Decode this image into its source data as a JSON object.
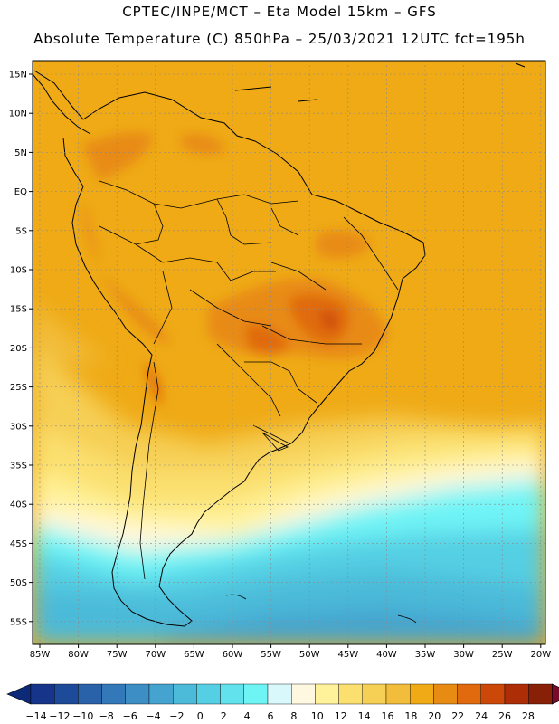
{
  "header": {
    "line1": "CPTEC/INPE/MCT –  Eta Model 15km – GFS",
    "line2": "Absolute Temperature (C) 850hPa – 25/03/2021 12UTC fct=195h"
  },
  "map": {
    "lat_labels": [
      "15N",
      "10N",
      "5N",
      "EQ",
      "5S",
      "10S",
      "15S",
      "20S",
      "25S",
      "30S",
      "35S",
      "40S",
      "45S",
      "50S",
      "55S"
    ],
    "lon_labels": [
      "85W",
      "80W",
      "75W",
      "70W",
      "65W",
      "60W",
      "55W",
      "50W",
      "45W",
      "40W",
      "35W",
      "30W",
      "25W",
      "20W"
    ],
    "lat_range": [
      15,
      -57
    ],
    "lon_range": [
      -86,
      -20
    ],
    "grid": true
  },
  "colorbar": {
    "labels": [
      "-14",
      "-12",
      "-10",
      "-8",
      "-6",
      "-4",
      "-2",
      "0",
      "2",
      "4",
      "6",
      "8",
      "10",
      "12",
      "14",
      "16",
      "18",
      "20",
      "22",
      "24",
      "26",
      "28"
    ],
    "left_arrow_color": "#0d2a78",
    "right_arrow_color": "#7a0a2a",
    "colors": [
      "#16348a",
      "#1e4a9a",
      "#2a62aa",
      "#3378b8",
      "#3d8ec4",
      "#45a4cf",
      "#4cbad9",
      "#55cfe3",
      "#62e2ec",
      "#6ff4f6",
      "#d8f8fb",
      "#fff8e0",
      "#fff29a",
      "#fbe070",
      "#f6cf55",
      "#f2bd3a",
      "#efaa16",
      "#e88b12",
      "#e06a0d",
      "#cc4808",
      "#ad2e06",
      "#882008"
    ]
  }
}
